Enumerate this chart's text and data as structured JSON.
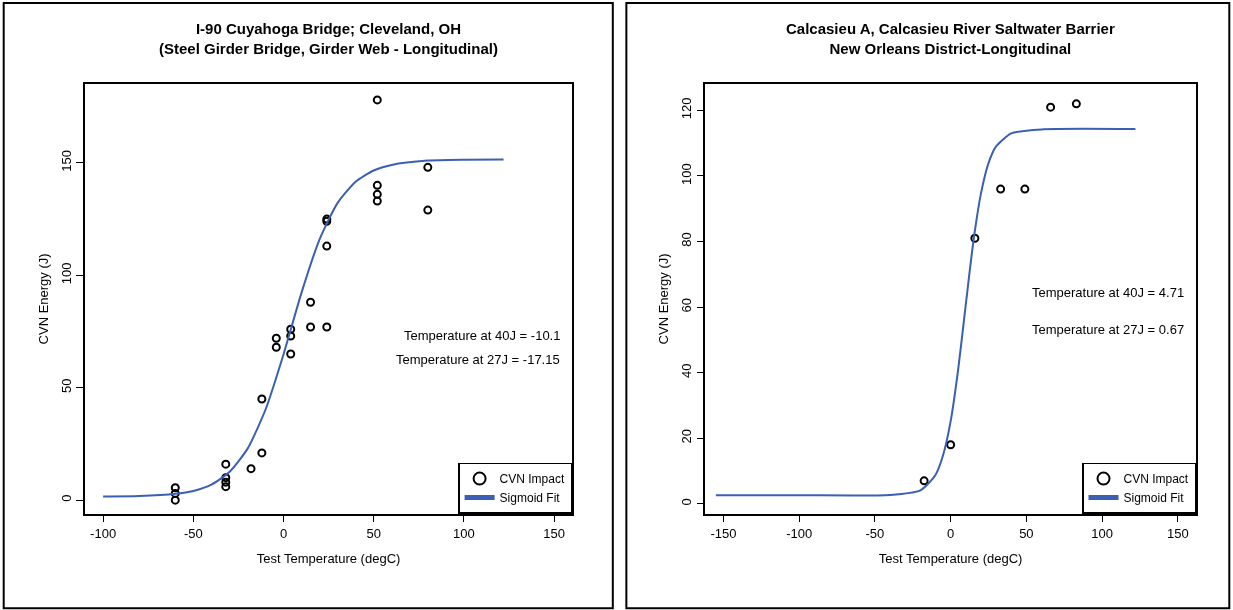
{
  "chart_data": [
    {
      "type": "scatter",
      "title": "I-90 Cuyahoga Bridge; Cleveland, OH\n(Steel Girder Bridge, Girder Web - Longitudinal)",
      "xlabel": "Test Temperature (degC)",
      "ylabel": "CVN Energy (J)",
      "xlim": [
        -110,
        160
      ],
      "ylim": [
        -6,
        185
      ],
      "xticks": [
        -100,
        -50,
        0,
        50,
        100,
        150
      ],
      "yticks": [
        0,
        50,
        100,
        150
      ],
      "legend": "bottom right",
      "annotations": [
        "Temperature at 40J = -10.1",
        "Temperature at 27J = -17.15"
      ],
      "series": [
        {
          "name": "CVN Impact",
          "marker": "circle",
          "color": "#000000",
          "x": [
            -60,
            -60,
            -60,
            -32,
            -32,
            -32,
            -32,
            -18,
            -12,
            -12,
            -4,
            -4,
            4,
            4,
            4,
            15,
            15,
            24,
            24,
            24,
            24,
            52,
            52,
            52,
            52,
            80,
            80
          ],
          "values": [
            5.5,
            3,
            0,
            16,
            10,
            8,
            6,
            14,
            45,
            21,
            72,
            68,
            76,
            73,
            65,
            88,
            77,
            125,
            124,
            113,
            77,
            178,
            140,
            136,
            133,
            148,
            129
          ]
        },
        {
          "name": "Sigmoid Fit",
          "type": "line",
          "marker": "none",
          "color": "#3a5fb4",
          "x": [
            -100,
            -80,
            -60,
            -50,
            -40,
            -30,
            -20,
            -10,
            0,
            10,
            20,
            30,
            40,
            50,
            60,
            80,
            100,
            122
          ],
          "values": [
            1.6,
            1.8,
            2.8,
            4.1,
            6.9,
            12.5,
            22.8,
            40.2,
            64.8,
            92.3,
            116.0,
            132.2,
            141.6,
            146.6,
            149.1,
            151.0,
            151.4,
            151.5
          ]
        }
      ]
    },
    {
      "type": "scatter",
      "title": "Calcasieu A, Calcasieu River Saltwater Barrier\nNew Orleans District-Longitudinal",
      "xlabel": "Test Temperature (degC)",
      "ylabel": "CVN Energy (J)",
      "xlim": [
        -162,
        162
      ],
      "ylim": [
        -3,
        128
      ],
      "xticks": [
        -150,
        -100,
        -50,
        0,
        50,
        100,
        150
      ],
      "yticks": [
        0,
        20,
        40,
        60,
        80,
        100,
        120
      ],
      "legend": "bottom right",
      "annotations": [
        "Temperature at 40J = 4.71",
        "Temperature at 27J = 0.67"
      ],
      "series": [
        {
          "name": "CVN Impact",
          "marker": "circle",
          "color": "#000000",
          "x": [
            -17.5,
            0,
            16,
            33,
            49,
            66,
            83
          ],
          "values": [
            7,
            18,
            81,
            96,
            96,
            121,
            122
          ]
        },
        {
          "name": "Sigmoid Fit",
          "type": "line",
          "marker": "none",
          "color": "#3a5fb4",
          "x": [
            -155,
            -100,
            -40,
            -20,
            -10,
            -5,
            0,
            5,
            10,
            15,
            20,
            25,
            30,
            40,
            60,
            122
          ],
          "values": [
            2.6,
            2.6,
            2.7,
            4.1,
            8.8,
            14.8,
            25.2,
            41.1,
            60.8,
            80.0,
            94.6,
            103.9,
            109.0,
            113.0,
            114.2,
            114.3
          ]
        }
      ]
    }
  ]
}
